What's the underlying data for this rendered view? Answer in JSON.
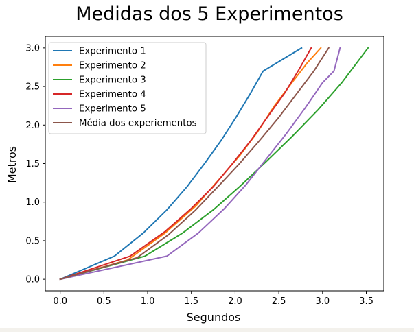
{
  "chart_data": {
    "type": "line",
    "title": "Medidas dos 5 Experimentos",
    "xlabel": "Segundos",
    "ylabel": "Metros",
    "xlim": [
      -0.17,
      3.7
    ],
    "ylim": [
      -0.15,
      3.15
    ],
    "xticks": [
      0.0,
      0.5,
      1.0,
      1.5,
      2.0,
      2.5,
      3.0,
      3.5
    ],
    "xtick_labels": [
      "0.0",
      "0.5",
      "1.0",
      "1.5",
      "2.0",
      "2.5",
      "3.0",
      "3.5"
    ],
    "yticks": [
      0.0,
      0.5,
      1.0,
      1.5,
      2.0,
      2.5,
      3.0
    ],
    "ytick_labels": [
      "0.0",
      "0.5",
      "1.0",
      "1.5",
      "2.0",
      "2.5",
      "3.0"
    ],
    "grid": false,
    "legend_position": "top-left",
    "series": [
      {
        "name": "Experimento 1",
        "color": "#1f77b4",
        "points": [
          [
            0.0,
            0.0
          ],
          [
            0.62,
            0.3
          ],
          [
            0.95,
            0.6
          ],
          [
            1.22,
            0.9
          ],
          [
            1.45,
            1.2
          ],
          [
            1.65,
            1.5
          ],
          [
            1.84,
            1.8
          ],
          [
            2.01,
            2.1
          ],
          [
            2.17,
            2.4
          ],
          [
            2.32,
            2.7
          ],
          [
            2.76,
            3.0
          ]
        ]
      },
      {
        "name": "Experimento 2",
        "color": "#ff7f0e",
        "points": [
          [
            0.0,
            0.0
          ],
          [
            0.77,
            0.25
          ],
          [
            1.2,
            0.6
          ],
          [
            1.55,
            0.95
          ],
          [
            1.82,
            1.3
          ],
          [
            2.05,
            1.6
          ],
          [
            2.25,
            1.9
          ],
          [
            2.45,
            2.25
          ],
          [
            2.65,
            2.55
          ],
          [
            2.82,
            2.8
          ],
          [
            2.98,
            3.0
          ]
        ]
      },
      {
        "name": "Experimento 3",
        "color": "#2ca02c",
        "points": [
          [
            0.0,
            0.0
          ],
          [
            0.97,
            0.3
          ],
          [
            1.4,
            0.6
          ],
          [
            1.75,
            0.9
          ],
          [
            2.05,
            1.2
          ],
          [
            2.35,
            1.52
          ],
          [
            2.65,
            1.85
          ],
          [
            2.95,
            2.2
          ],
          [
            3.22,
            2.55
          ],
          [
            3.52,
            3.0
          ]
        ]
      },
      {
        "name": "Experimento 4",
        "color": "#d62728",
        "points": [
          [
            0.0,
            0.0
          ],
          [
            0.8,
            0.3
          ],
          [
            1.2,
            0.62
          ],
          [
            1.5,
            0.92
          ],
          [
            1.75,
            1.2
          ],
          [
            1.97,
            1.5
          ],
          [
            2.18,
            1.8
          ],
          [
            2.38,
            2.12
          ],
          [
            2.57,
            2.42
          ],
          [
            2.73,
            2.72
          ],
          [
            2.87,
            3.0
          ]
        ]
      },
      {
        "name": "Experimento 5",
        "color": "#9467bd",
        "points": [
          [
            0.0,
            0.0
          ],
          [
            1.22,
            0.3
          ],
          [
            1.58,
            0.6
          ],
          [
            1.88,
            0.92
          ],
          [
            2.12,
            1.22
          ],
          [
            2.35,
            1.55
          ],
          [
            2.58,
            1.88
          ],
          [
            2.8,
            2.22
          ],
          [
            3.0,
            2.55
          ],
          [
            3.13,
            2.7
          ],
          [
            3.2,
            3.0
          ]
        ]
      },
      {
        "name": "Média dos experiementos",
        "color": "#8c564b",
        "points": [
          [
            0.0,
            0.0
          ],
          [
            0.88,
            0.28
          ],
          [
            1.24,
            0.58
          ],
          [
            1.55,
            0.9
          ],
          [
            1.82,
            1.22
          ],
          [
            2.05,
            1.5
          ],
          [
            2.28,
            1.8
          ],
          [
            2.5,
            2.1
          ],
          [
            2.7,
            2.4
          ],
          [
            2.9,
            2.7
          ],
          [
            3.07,
            3.0
          ]
        ]
      }
    ]
  }
}
